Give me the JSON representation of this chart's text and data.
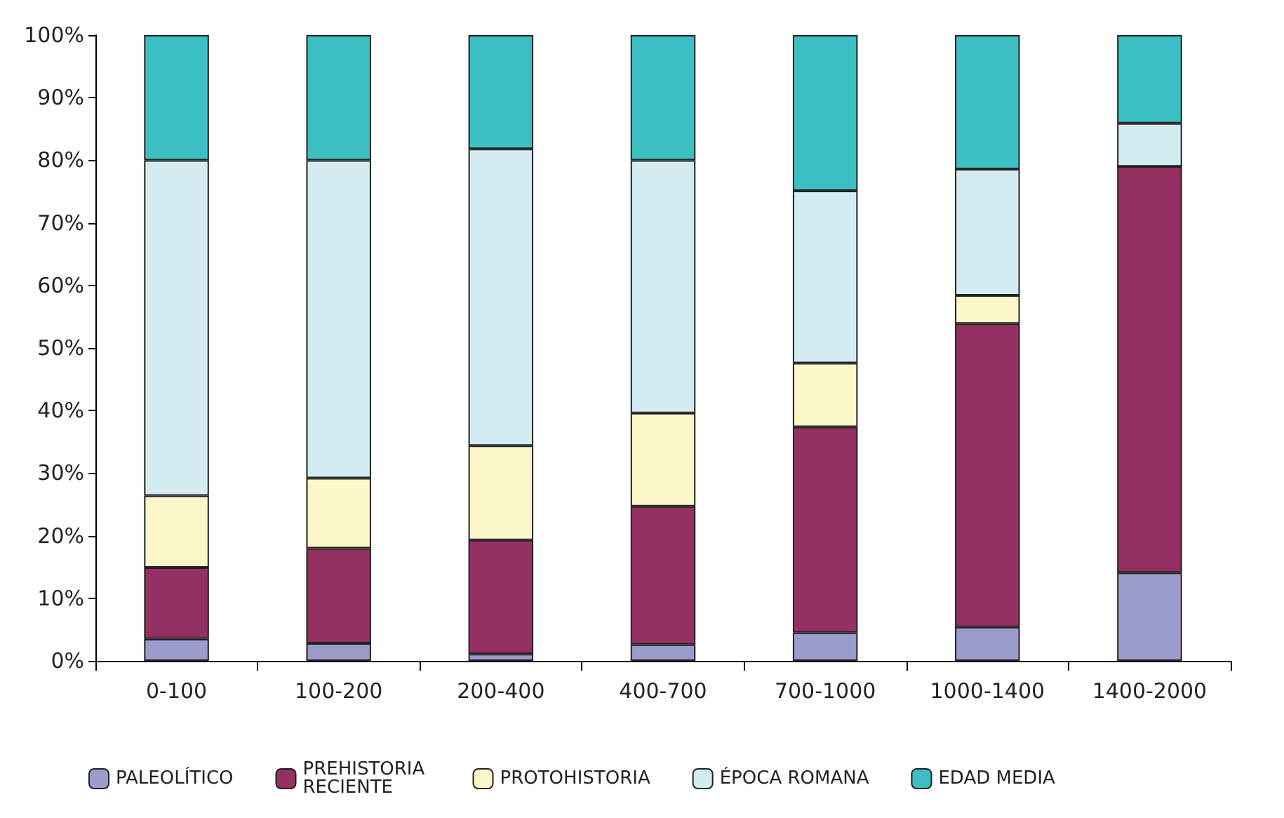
{
  "chart_data": {
    "type": "bar",
    "stacked": true,
    "categories": [
      "0-100",
      "100-200",
      "200-400",
      "400-700",
      "700-1000",
      "1000-1400",
      "1400-2000"
    ],
    "series": [
      {
        "name": "PALEOLÍTICO",
        "color": "#9b9bcc",
        "values": [
          3.5,
          2.8,
          1.1,
          2.6,
          4.5,
          5.4,
          14.1
        ]
      },
      {
        "name": "PREHISTORIA RECIENTE",
        "color": "#943062",
        "values": [
          11.4,
          15.2,
          18.2,
          22.1,
          32.9,
          48.5,
          64.9
        ]
      },
      {
        "name": "PROTOHISTORIA",
        "color": "#fbf7c9",
        "values": [
          11.5,
          11.2,
          15.1,
          14.9,
          10.2,
          4.5,
          0
        ]
      },
      {
        "name": "ÉPOCA ROMANA",
        "color": "#d3ecf2",
        "values": [
          53.6,
          50.8,
          47.4,
          40.4,
          27.5,
          20.2,
          6.9
        ]
      },
      {
        "name": "EDAD MEDIA",
        "color": "#3bbfc3",
        "values": [
          20,
          20,
          18.2,
          20,
          24.9,
          21.4,
          14.1
        ]
      }
    ],
    "ylim": [
      0,
      100
    ],
    "yticks": [
      {
        "value": 0,
        "label": "0%"
      },
      {
        "value": 10,
        "label": "10%"
      },
      {
        "value": 20,
        "label": "20%"
      },
      {
        "value": 30,
        "label": "30%"
      },
      {
        "value": 40,
        "label": "40%"
      },
      {
        "value": 50,
        "label": "50%"
      },
      {
        "value": 60,
        "label": "60%"
      },
      {
        "value": 70,
        "label": "70%"
      },
      {
        "value": 80,
        "label": "80%"
      },
      {
        "value": 90,
        "label": "90%"
      },
      {
        "value": 100,
        "label": "100%"
      }
    ],
    "grid": false,
    "legend": "bottom"
  }
}
